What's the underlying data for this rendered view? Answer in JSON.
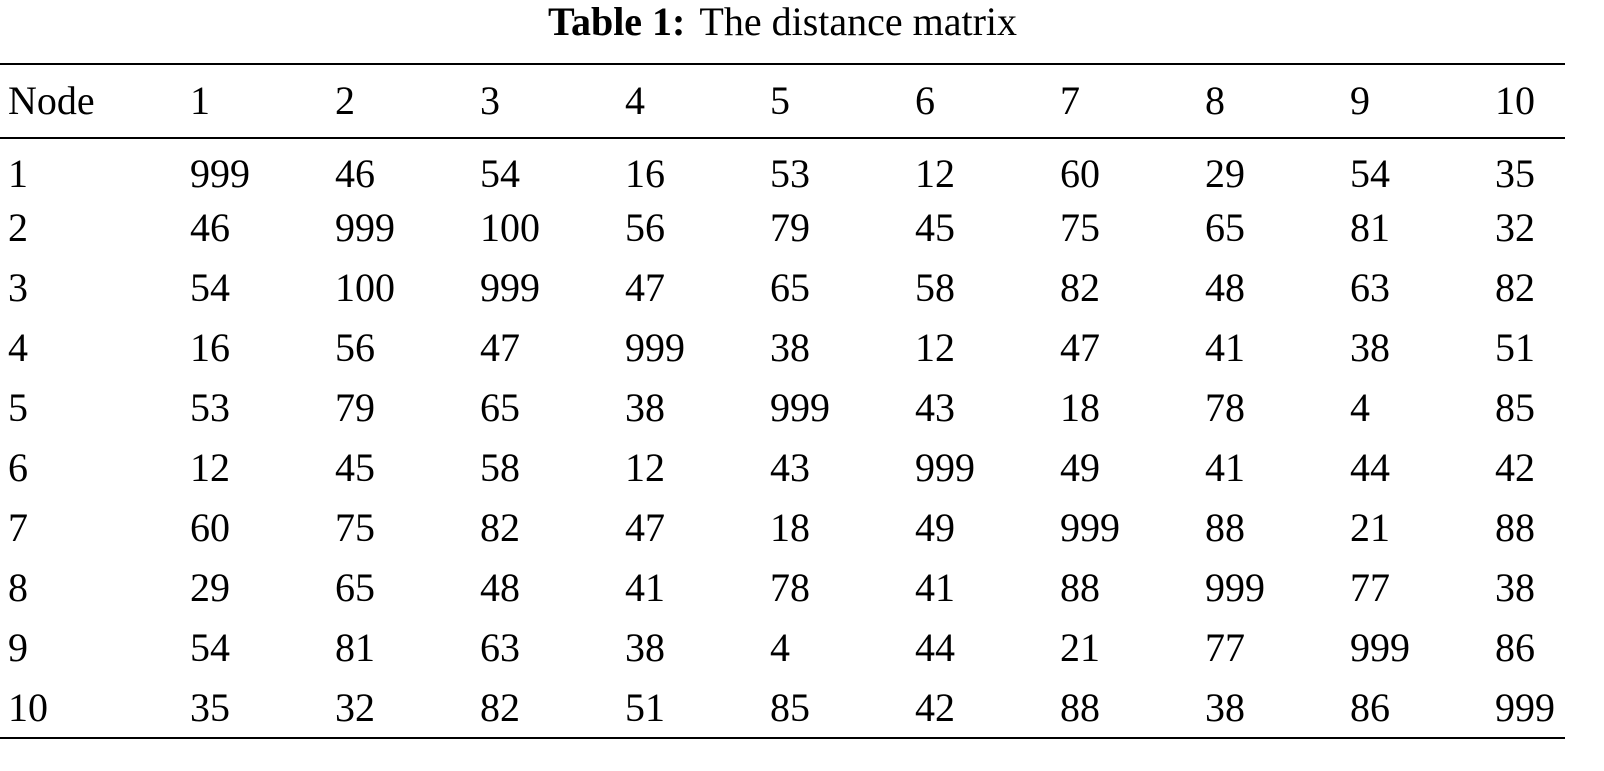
{
  "caption": {
    "label": "Table 1:",
    "text": "The distance matrix"
  },
  "table": {
    "header": [
      "Node",
      "1",
      "2",
      "3",
      "4",
      "5",
      "6",
      "7",
      "8",
      "9",
      "10"
    ],
    "rows": [
      [
        "1",
        999,
        46,
        54,
        16,
        53,
        12,
        60,
        29,
        54,
        35
      ],
      [
        "2",
        46,
        999,
        100,
        56,
        79,
        45,
        75,
        65,
        81,
        32
      ],
      [
        "3",
        54,
        100,
        999,
        47,
        65,
        58,
        82,
        48,
        63,
        82
      ],
      [
        "4",
        16,
        56,
        47,
        999,
        38,
        12,
        47,
        41,
        38,
        51
      ],
      [
        "5",
        53,
        79,
        65,
        38,
        999,
        43,
        18,
        78,
        4,
        85
      ],
      [
        "6",
        12,
        45,
        58,
        12,
        43,
        999,
        49,
        41,
        44,
        42
      ],
      [
        "7",
        60,
        75,
        82,
        47,
        18,
        49,
        999,
        88,
        21,
        88
      ],
      [
        "8",
        29,
        65,
        48,
        41,
        78,
        41,
        88,
        999,
        77,
        38
      ],
      [
        "9",
        54,
        81,
        63,
        38,
        4,
        44,
        21,
        77,
        999,
        86
      ],
      [
        "10",
        35,
        32,
        82,
        51,
        85,
        42,
        88,
        38,
        86,
        999
      ]
    ]
  }
}
